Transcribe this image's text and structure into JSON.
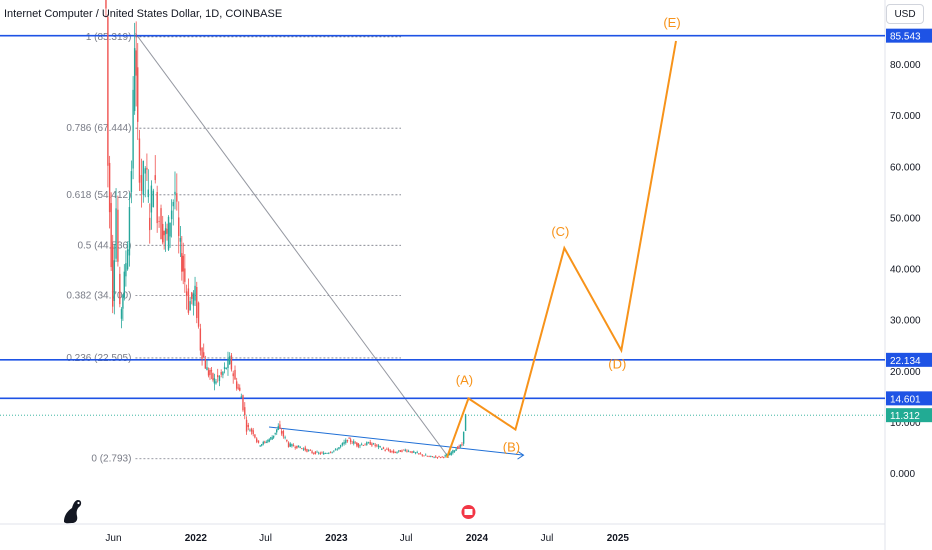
{
  "header": {
    "title": "Internet Computer / United States Dollar, 1D, COINBASE",
    "currency_button": "USD"
  },
  "colors": {
    "up": "#26a69a",
    "down": "#ef5350",
    "hline": "#1e53e5",
    "wave": "#f7931a",
    "fib": "#787b86",
    "trend": "#1f6fd6",
    "current_price": "#22ab94"
  },
  "chart_data": {
    "type": "candlestick",
    "title": "Internet Computer / United States Dollar, 1D, COINBASE",
    "x_tick_labels": [
      "Jun",
      "2022",
      "Jul",
      "2023",
      "Jul",
      "2024",
      "Jul",
      "2025"
    ],
    "y_tick_labels": [
      "0.000",
      "10.000",
      "20.000",
      "30.000",
      "40.000",
      "50.000",
      "60.000",
      "70.000",
      "80.000"
    ],
    "y_ticks": [
      0,
      10,
      20,
      30,
      40,
      50,
      60,
      70,
      80
    ],
    "ylim": [
      -10,
      89
    ],
    "price_series": [
      [
        "2021-05-10",
        120
      ],
      [
        "2021-05-20",
        60
      ],
      [
        "2021-06-01",
        35
      ],
      [
        "2021-06-10",
        52
      ],
      [
        "2021-06-20",
        30
      ],
      [
        "2021-07-01",
        38
      ],
      [
        "2021-07-10",
        45
      ],
      [
        "2021-07-20",
        60
      ],
      [
        "2021-07-28",
        85
      ],
      [
        "2021-08-05",
        65
      ],
      [
        "2021-08-15",
        56
      ],
      [
        "2021-08-25",
        60
      ],
      [
        "2021-09-05",
        50
      ],
      [
        "2021-09-15",
        58
      ],
      [
        "2021-09-25",
        52
      ],
      [
        "2021-10-05",
        48
      ],
      [
        "2021-10-20",
        46
      ],
      [
        "2021-11-01",
        52
      ],
      [
        "2021-11-10",
        55
      ],
      [
        "2021-11-20",
        45
      ],
      [
        "2021-12-01",
        40
      ],
      [
        "2021-12-15",
        33
      ],
      [
        "2022-01-01",
        35
      ],
      [
        "2022-01-15",
        25
      ],
      [
        "2022-02-01",
        20
      ],
      [
        "2022-02-20",
        18
      ],
      [
        "2022-03-10",
        19
      ],
      [
        "2022-04-01",
        22
      ],
      [
        "2022-04-15",
        18
      ],
      [
        "2022-05-01",
        15
      ],
      [
        "2022-05-15",
        9
      ],
      [
        "2022-06-01",
        8
      ],
      [
        "2022-06-15",
        5.5
      ],
      [
        "2022-07-01",
        6
      ],
      [
        "2022-07-20",
        7
      ],
      [
        "2022-08-05",
        9
      ],
      [
        "2022-09-01",
        5.5
      ],
      [
        "2022-10-01",
        5
      ],
      [
        "2022-11-01",
        4
      ],
      [
        "2022-12-01",
        3.8
      ],
      [
        "2023-01-01",
        4.5
      ],
      [
        "2023-02-01",
        6.5
      ],
      [
        "2023-03-01",
        5.5
      ],
      [
        "2023-04-01",
        5.8
      ],
      [
        "2023-05-01",
        4.8
      ],
      [
        "2023-06-01",
        4
      ],
      [
        "2023-07-01",
        4.5
      ],
      [
        "2023-08-01",
        3.8
      ],
      [
        "2023-09-01",
        3.2
      ],
      [
        "2023-10-01",
        3.1
      ],
      [
        "2023-10-20",
        3.5
      ],
      [
        "2023-11-10",
        4.8
      ],
      [
        "2023-11-25",
        5.5
      ],
      [
        "2023-12-05",
        11.3
      ]
    ],
    "fib_retracement": [
      {
        "label": "1 (85.319)",
        "value": 85.319
      },
      {
        "label": "0.786 (67.444)",
        "value": 67.444
      },
      {
        "label": "0.618 (54.412)",
        "value": 54.412
      },
      {
        "label": "0.5 (44.536)",
        "value": 44.536
      },
      {
        "label": "0.382 (34.700)",
        "value": 34.7
      },
      {
        "label": "0.236 (22.505)",
        "value": 22.505
      },
      {
        "label": "0 (2.793)",
        "value": 2.793
      }
    ],
    "horizontal_levels": [
      {
        "label": "85.543",
        "value": 85.543
      },
      {
        "label": "22.134",
        "value": 22.134
      },
      {
        "label": "14.601",
        "value": 14.601
      }
    ],
    "current_price": {
      "label": "11.312",
      "value": 11.312
    },
    "wave_projection": [
      {
        "date": "2023-10-15",
        "value": 3,
        "label": ""
      },
      {
        "date": "2023-12-10",
        "value": 14.6,
        "label": "(A)"
      },
      {
        "date": "2024-04-10",
        "value": 8.5,
        "label": "(B)"
      },
      {
        "date": "2024-08-15",
        "value": 44,
        "label": "(C)"
      },
      {
        "date": "2025-01-10",
        "value": 24,
        "label": "(D)"
      },
      {
        "date": "2025-06-01",
        "value": 84.5,
        "label": "(E)"
      }
    ],
    "trendlines": [
      {
        "name": "fib-diagonal",
        "from": {
          "date": "2021-07-28",
          "value": 86
        },
        "to": {
          "date": "2023-10-20",
          "value": 3
        }
      },
      {
        "name": "descending-trendline",
        "from": {
          "date": "2022-07-10",
          "value": 9
        },
        "to": {
          "date": "2024-05-01",
          "value": 3.5
        }
      }
    ],
    "grid": false,
    "legend": "none"
  }
}
